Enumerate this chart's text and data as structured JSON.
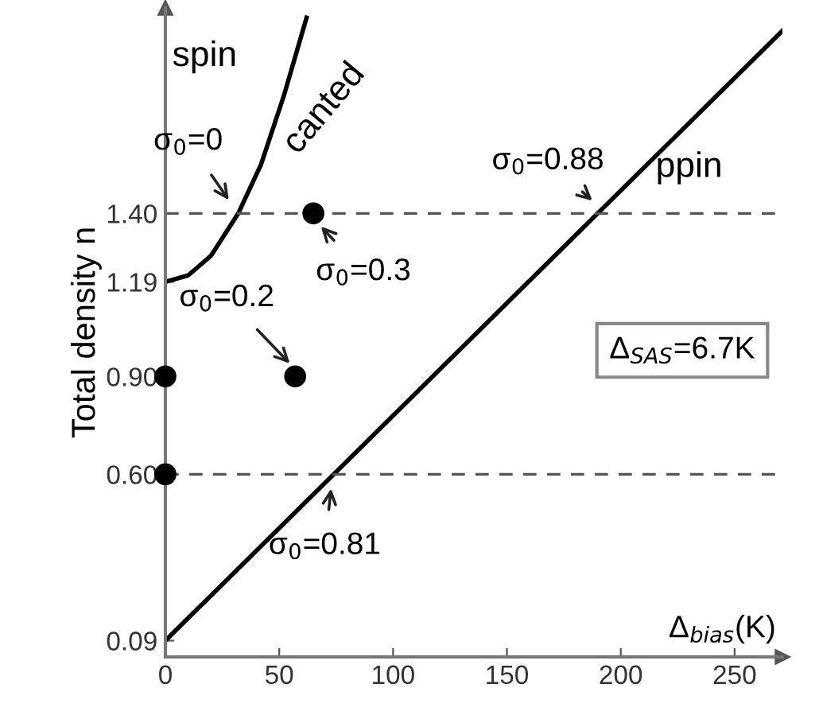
{
  "chart_data": {
    "type": "line",
    "xlabel": "Δ$_{bias}$(K)",
    "ylabel": "Total density n",
    "series": [
      {
        "color": "#000000",
        "x": [
          0,
          10,
          20,
          32,
          42,
          52,
          62
        ],
        "values": [
          1.19,
          1.21,
          1.27,
          1.4,
          1.55,
          1.76,
          2.0
        ]
      },
      {
        "color": "#000000",
        "x": [
          0,
          271
        ],
        "values": [
          0.09,
          1.96
        ]
      },
      {
        "type": "scatter",
        "color": "#000000",
        "marker": "circle",
        "x": [
          0,
          0,
          57,
          65
        ],
        "values": [
          0.6,
          0.9,
          0.9,
          1.4
        ]
      }
    ],
    "xlim": [
      0,
      271
    ],
    "ylim": [
      0.04,
      2.03
    ],
    "xticks": [
      0,
      50,
      100,
      150,
      200,
      250
    ],
    "yticks": [
      {
        "value": 0.09,
        "label": "0.09"
      },
      {
        "value": 0.6,
        "label": "0.60"
      },
      {
        "value": 0.9,
        "label": "0.90"
      },
      {
        "value": 1.19,
        "label": "1.19"
      },
      {
        "value": 1.4,
        "label": "1.40"
      }
    ],
    "ref_lines": [
      {
        "axis": "y",
        "value": 0.6,
        "color": "#555555",
        "line_style": "dashed"
      },
      {
        "axis": "y",
        "value": 1.4,
        "color": "#555555",
        "line_style": "dashed"
      }
    ],
    "annotations": [
      {
        "text": "σ$_{0}$=0",
        "x": 30,
        "y": 1.4
      },
      {
        "text": "σ$_{0}$=0.3",
        "x": 65,
        "y": 1.4
      },
      {
        "text": "σ$_{0}$=0.2",
        "x": 57,
        "y": 0.9
      },
      {
        "text": "σ$_{0}$=0.88",
        "x": 190,
        "y": 1.4
      },
      {
        "text": "σ$_{0}$=0.81",
        "x": 74,
        "y": 0.6
      },
      "spin",
      "canted",
      "ppin",
      "Δ$_{SAS}$=6.7K"
    ],
    "grid": false
  }
}
